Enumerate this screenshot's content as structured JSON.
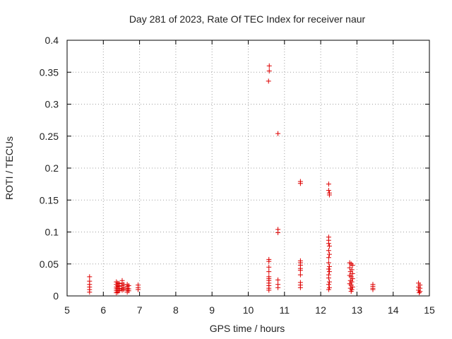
{
  "colors": {
    "series": "#dd0000",
    "axis": "#000000",
    "grid": "#a0a0a0"
  },
  "chart_data": {
    "type": "scatter",
    "title": "Day 281 of 2023, Rate Of TEC Index for receiver naur",
    "xlabel": "GPS time / hours",
    "ylabel": "ROTI / TECUs",
    "xlim": [
      5,
      15
    ],
    "ylim": [
      0,
      0.4
    ],
    "xticks": [
      5,
      6,
      7,
      8,
      9,
      10,
      11,
      12,
      13,
      14,
      15
    ],
    "xtick_labels": [
      "5",
      "6",
      "7",
      "8",
      "9",
      "10",
      "11",
      "12",
      "13",
      "14",
      "15"
    ],
    "yticks": [
      0,
      0.05,
      0.1,
      0.15,
      0.2,
      0.25,
      0.3,
      0.35,
      0.4
    ],
    "ytick_labels": [
      "0",
      "0.05",
      "0.1",
      "0.15",
      "0.2",
      "0.25",
      "0.3",
      "0.35",
      "0.4"
    ],
    "grid": true,
    "marker": "+",
    "series": [
      {
        "points": [
          [
            5.62,
            0.03
          ],
          [
            5.62,
            0.023
          ],
          [
            5.62,
            0.018
          ],
          [
            5.62,
            0.014
          ],
          [
            5.62,
            0.01
          ],
          [
            5.62,
            0.006
          ],
          [
            6.36,
            0.022
          ],
          [
            6.36,
            0.018
          ],
          [
            6.36,
            0.014
          ],
          [
            6.36,
            0.011
          ],
          [
            6.36,
            0.008
          ],
          [
            6.36,
            0.005
          ],
          [
            6.4,
            0.02
          ],
          [
            6.4,
            0.016
          ],
          [
            6.4,
            0.012
          ],
          [
            6.4,
            0.009
          ],
          [
            6.4,
            0.006
          ],
          [
            6.44,
            0.019
          ],
          [
            6.44,
            0.015
          ],
          [
            6.44,
            0.011
          ],
          [
            6.44,
            0.008
          ],
          [
            6.52,
            0.024
          ],
          [
            6.52,
            0.02
          ],
          [
            6.52,
            0.016
          ],
          [
            6.52,
            0.012
          ],
          [
            6.52,
            0.009
          ],
          [
            6.56,
            0.018
          ],
          [
            6.56,
            0.013
          ],
          [
            6.56,
            0.01
          ],
          [
            6.66,
            0.018
          ],
          [
            6.66,
            0.015
          ],
          [
            6.66,
            0.012
          ],
          [
            6.66,
            0.009
          ],
          [
            6.66,
            0.006
          ],
          [
            6.7,
            0.016
          ],
          [
            6.7,
            0.011
          ],
          [
            6.7,
            0.008
          ],
          [
            6.96,
            0.017
          ],
          [
            6.96,
            0.013
          ],
          [
            6.96,
            0.01
          ],
          [
            10.58,
            0.36
          ],
          [
            10.58,
            0.352
          ],
          [
            10.56,
            0.336
          ],
          [
            10.57,
            0.057
          ],
          [
            10.57,
            0.054
          ],
          [
            10.57,
            0.045
          ],
          [
            10.57,
            0.038
          ],
          [
            10.57,
            0.03
          ],
          [
            10.57,
            0.027
          ],
          [
            10.57,
            0.024
          ],
          [
            10.57,
            0.02
          ],
          [
            10.57,
            0.016
          ],
          [
            10.57,
            0.012
          ],
          [
            10.57,
            0.009
          ],
          [
            10.82,
            0.254
          ],
          [
            10.82,
            0.104
          ],
          [
            10.82,
            0.099
          ],
          [
            10.82,
            0.025
          ],
          [
            10.82,
            0.018
          ],
          [
            10.82,
            0.013
          ],
          [
            11.44,
            0.179
          ],
          [
            11.44,
            0.176
          ],
          [
            11.44,
            0.055
          ],
          [
            11.44,
            0.052
          ],
          [
            11.44,
            0.048
          ],
          [
            11.44,
            0.043
          ],
          [
            11.44,
            0.04
          ],
          [
            11.44,
            0.033
          ],
          [
            11.44,
            0.021
          ],
          [
            11.44,
            0.017
          ],
          [
            11.44,
            0.013
          ],
          [
            12.22,
            0.175
          ],
          [
            12.22,
            0.165
          ],
          [
            12.24,
            0.161
          ],
          [
            12.24,
            0.158
          ],
          [
            12.22,
            0.092
          ],
          [
            12.22,
            0.087
          ],
          [
            12.22,
            0.082
          ],
          [
            12.24,
            0.078
          ],
          [
            12.22,
            0.071
          ],
          [
            12.24,
            0.065
          ],
          [
            12.22,
            0.06
          ],
          [
            12.22,
            0.052
          ],
          [
            12.24,
            0.046
          ],
          [
            12.22,
            0.042
          ],
          [
            12.24,
            0.038
          ],
          [
            12.22,
            0.033
          ],
          [
            12.22,
            0.028
          ],
          [
            12.24,
            0.022
          ],
          [
            12.22,
            0.018
          ],
          [
            12.24,
            0.013
          ],
          [
            12.22,
            0.01
          ],
          [
            12.8,
            0.052
          ],
          [
            12.84,
            0.05
          ],
          [
            12.88,
            0.048
          ],
          [
            12.8,
            0.044
          ],
          [
            12.86,
            0.041
          ],
          [
            12.82,
            0.038
          ],
          [
            12.88,
            0.035
          ],
          [
            12.8,
            0.032
          ],
          [
            12.84,
            0.03
          ],
          [
            12.88,
            0.027
          ],
          [
            12.82,
            0.024
          ],
          [
            12.86,
            0.022
          ],
          [
            12.8,
            0.019
          ],
          [
            12.84,
            0.017
          ],
          [
            12.88,
            0.014
          ],
          [
            12.82,
            0.012
          ],
          [
            12.86,
            0.01
          ],
          [
            12.84,
            0.007
          ],
          [
            13.44,
            0.018
          ],
          [
            13.44,
            0.015
          ],
          [
            13.44,
            0.012
          ],
          [
            13.44,
            0.01
          ],
          [
            14.7,
            0.02
          ],
          [
            14.74,
            0.017
          ],
          [
            14.7,
            0.014
          ],
          [
            14.74,
            0.012
          ],
          [
            14.7,
            0.009
          ],
          [
            14.74,
            0.007
          ],
          [
            14.72,
            0.005
          ]
        ]
      }
    ]
  }
}
